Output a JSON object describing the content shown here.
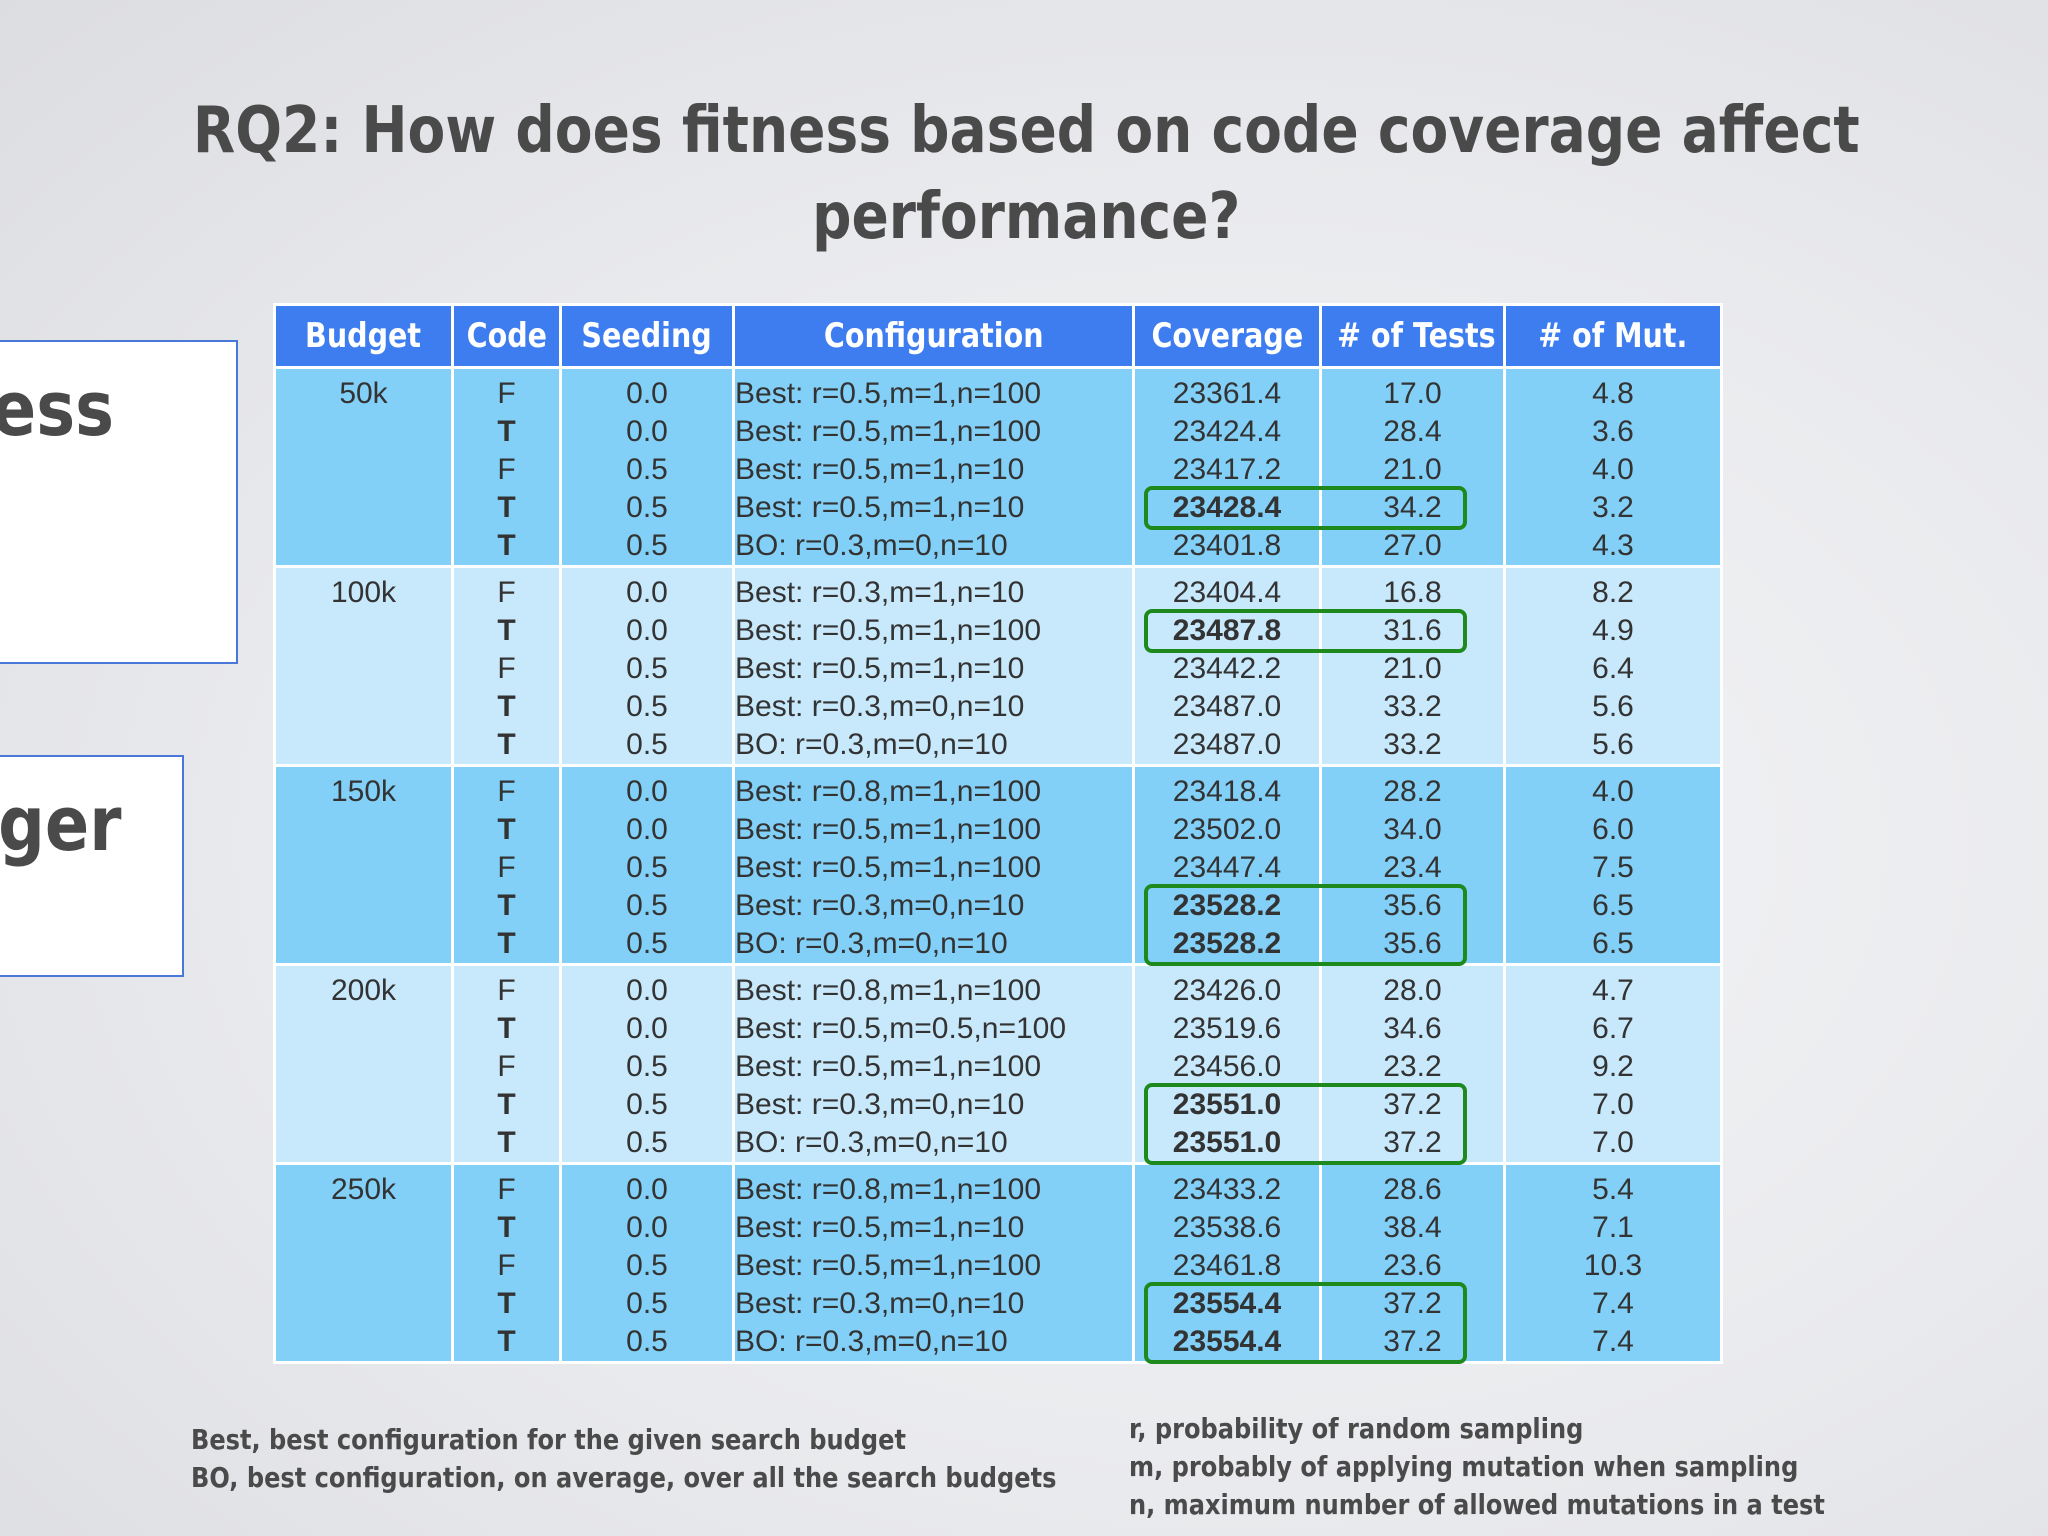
{
  "title": {
    "line1": "RQ2: How does fitness based on code coverage affect",
    "line2": "performance?"
  },
  "side_fragments": [
    "ess",
    "ger"
  ],
  "table": {
    "headers": [
      "Budget",
      "Code",
      "Seeding",
      "Configuration",
      "Coverage",
      "# of Tests",
      "# of Mut."
    ],
    "groups": [
      {
        "budget": "50k",
        "shade": "dark",
        "rows": [
          {
            "code": "F",
            "seeding": "0.0",
            "config": "Best: r=0.5,m=1,n=100",
            "coverage": "23361.4",
            "tests": "17.0",
            "mut": "4.8",
            "bold": false
          },
          {
            "code": "T",
            "seeding": "0.0",
            "config": "Best: r=0.5,m=1,n=100",
            "coverage": "23424.4",
            "tests": "28.4",
            "mut": "3.6",
            "bold": false
          },
          {
            "code": "F",
            "seeding": "0.5",
            "config": "Best: r=0.5,m=1,n=10",
            "coverage": "23417.2",
            "tests": "21.0",
            "mut": "4.0",
            "bold": false
          },
          {
            "code": "T",
            "seeding": "0.5",
            "config": "Best: r=0.5,m=1,n=10",
            "coverage": "23428.4",
            "tests": "34.2",
            "mut": "3.2",
            "bold": true
          },
          {
            "code": "T",
            "seeding": "0.5",
            "config": "BO: r=0.3,m=0,n=10",
            "coverage": "23401.8",
            "tests": "27.0",
            "mut": "4.3",
            "bold": false
          }
        ]
      },
      {
        "budget": "100k",
        "shade": "light",
        "rows": [
          {
            "code": "F",
            "seeding": "0.0",
            "config": "Best: r=0.3,m=1,n=10",
            "coverage": "23404.4",
            "tests": "16.8",
            "mut": "8.2",
            "bold": false
          },
          {
            "code": "T",
            "seeding": "0.0",
            "config": "Best: r=0.5,m=1,n=100",
            "coverage": "23487.8",
            "tests": "31.6",
            "mut": "4.9",
            "bold": true
          },
          {
            "code": "F",
            "seeding": "0.5",
            "config": "Best: r=0.5,m=1,n=10",
            "coverage": "23442.2",
            "tests": "21.0",
            "mut": "6.4",
            "bold": false
          },
          {
            "code": "T",
            "seeding": "0.5",
            "config": "Best: r=0.3,m=0,n=10",
            "coverage": "23487.0",
            "tests": "33.2",
            "mut": "5.6",
            "bold": false
          },
          {
            "code": "T",
            "seeding": "0.5",
            "config": "BO: r=0.3,m=0,n=10",
            "coverage": "23487.0",
            "tests": "33.2",
            "mut": "5.6",
            "bold": false
          }
        ]
      },
      {
        "budget": "150k",
        "shade": "dark",
        "rows": [
          {
            "code": "F",
            "seeding": "0.0",
            "config": "Best: r=0.8,m=1,n=100",
            "coverage": "23418.4",
            "tests": "28.2",
            "mut": "4.0",
            "bold": false
          },
          {
            "code": "T",
            "seeding": "0.0",
            "config": "Best: r=0.5,m=1,n=100",
            "coverage": "23502.0",
            "tests": "34.0",
            "mut": "6.0",
            "bold": false
          },
          {
            "code": "F",
            "seeding": "0.5",
            "config": "Best: r=0.5,m=1,n=100",
            "coverage": "23447.4",
            "tests": "23.4",
            "mut": "7.5",
            "bold": false
          },
          {
            "code": "T",
            "seeding": "0.5",
            "config": "Best: r=0.3,m=0,n=10",
            "coverage": "23528.2",
            "tests": "35.6",
            "mut": "6.5",
            "bold": true
          },
          {
            "code": "T",
            "seeding": "0.5",
            "config": "BO: r=0.3,m=0,n=10",
            "coverage": "23528.2",
            "tests": "35.6",
            "mut": "6.5",
            "bold": true
          }
        ]
      },
      {
        "budget": "200k",
        "shade": "light",
        "rows": [
          {
            "code": "F",
            "seeding": "0.0",
            "config": "Best: r=0.8,m=1,n=100",
            "coverage": "23426.0",
            "tests": "28.0",
            "mut": "4.7",
            "bold": false
          },
          {
            "code": "T",
            "seeding": "0.0",
            "config": "Best: r=0.5,m=0.5,n=100",
            "coverage": "23519.6",
            "tests": "34.6",
            "mut": "6.7",
            "bold": false
          },
          {
            "code": "F",
            "seeding": "0.5",
            "config": "Best: r=0.5,m=1,n=100",
            "coverage": "23456.0",
            "tests": "23.2",
            "mut": "9.2",
            "bold": false
          },
          {
            "code": "T",
            "seeding": "0.5",
            "config": "Best: r=0.3,m=0,n=10",
            "coverage": "23551.0",
            "tests": "37.2",
            "mut": "7.0",
            "bold": true
          },
          {
            "code": "T",
            "seeding": "0.5",
            "config": "BO: r=0.3,m=0,n=10",
            "coverage": "23551.0",
            "tests": "37.2",
            "mut": "7.0",
            "bold": true
          }
        ]
      },
      {
        "budget": "250k",
        "shade": "dark",
        "rows": [
          {
            "code": "F",
            "seeding": "0.0",
            "config": "Best: r=0.8,m=1,n=100",
            "coverage": "23433.2",
            "tests": "28.6",
            "mut": "5.4",
            "bold": false
          },
          {
            "code": "T",
            "seeding": "0.0",
            "config": "Best: r=0.5,m=1,n=10",
            "coverage": "23538.6",
            "tests": "38.4",
            "mut": "7.1",
            "bold": false
          },
          {
            "code": "F",
            "seeding": "0.5",
            "config": "Best: r=0.5,m=1,n=100",
            "coverage": "23461.8",
            "tests": "23.6",
            "mut": "10.3",
            "bold": false
          },
          {
            "code": "T",
            "seeding": "0.5",
            "config": "Best: r=0.3,m=0,n=10",
            "coverage": "23554.4",
            "tests": "37.2",
            "mut": "7.4",
            "bold": true
          },
          {
            "code": "T",
            "seeding": "0.5",
            "config": "BO: r=0.3,m=0,n=10",
            "coverage": "23554.4",
            "tests": "37.2",
            "mut": "7.4",
            "bold": true
          }
        ]
      }
    ]
  },
  "legend_left": [
    "Best, best configuration for the given search budget",
    "BO, best configuration, on average, over all the search budgets"
  ],
  "legend_right": [
    "r, probability of random sampling",
    "m, probably of applying mutation when sampling",
    "n, maximum number of allowed mutations in a test"
  ],
  "colors": {
    "header_bg": "#3d7df0",
    "row_dark": "#82d0f7",
    "row_light": "#c8e9fb",
    "highlight": "#1e8a1e",
    "title_text": "#4a4a4a"
  }
}
